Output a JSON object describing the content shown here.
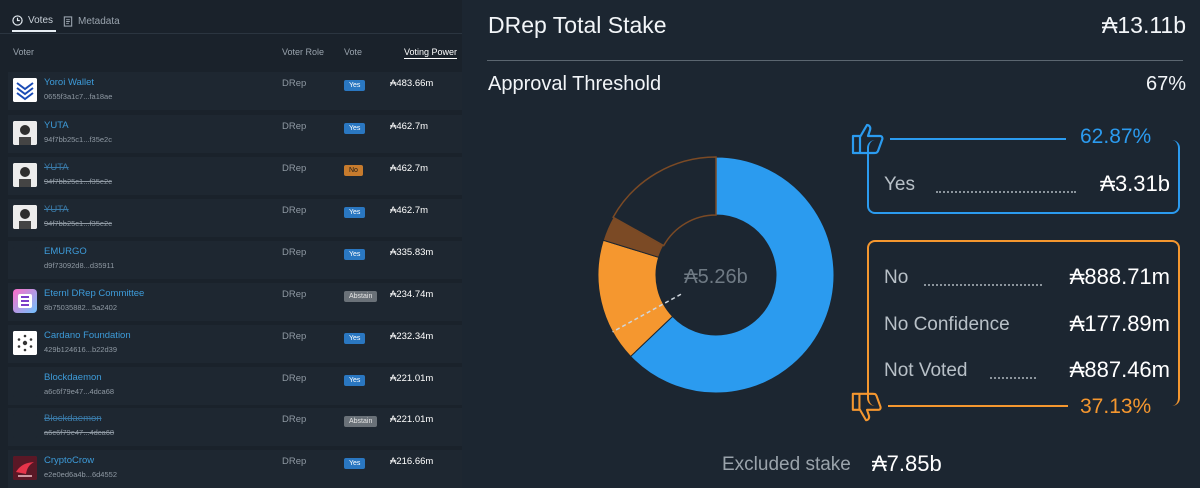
{
  "tabs": [
    {
      "label": "Votes"
    },
    {
      "label": "Metadata"
    }
  ],
  "table": {
    "headers": {
      "voter": "Voter",
      "role": "Voter Role",
      "vote": "Vote",
      "power": "Voting Power"
    },
    "rows": [
      {
        "name": "Yoroi Wallet",
        "hash": "0655f3a1c7...fa18ae",
        "role": "DRep",
        "vote": "Yes",
        "power": "₳483.66m"
      },
      {
        "name": "YUTA",
        "hash": "94f7bb25c1...f35e2c",
        "role": "DRep",
        "vote": "Yes",
        "power": "₳462.7m"
      },
      {
        "name": "YUTA",
        "hash": "94f7bb25c1...f35e2c",
        "role": "DRep",
        "vote": "No",
        "power": "₳462.7m"
      },
      {
        "name": "YUTA",
        "hash": "94f7bb25c1...f35e2c",
        "role": "DRep",
        "vote": "Yes",
        "power": "₳462.7m"
      },
      {
        "name": "EMURGO",
        "hash": "d9f73092d8...d35911",
        "role": "DRep",
        "vote": "Yes",
        "power": "₳335.83m"
      },
      {
        "name": "Eternl DRep Committee",
        "hash": "8b75035882...5a2402",
        "role": "DRep",
        "vote": "Abstain",
        "power": "₳234.74m"
      },
      {
        "name": "Cardano Foundation",
        "hash": "429b124616...b22d39",
        "role": "DRep",
        "vote": "Yes",
        "power": "₳232.34m"
      },
      {
        "name": "Blockdaemon",
        "hash": "a6c6f79e47...4dca68",
        "role": "DRep",
        "vote": "Yes",
        "power": "₳221.01m"
      },
      {
        "name": "Blockdaemon",
        "hash": "a6c6f79e47...4dca68",
        "role": "DRep",
        "vote": "Abstain",
        "power": "₳221.01m"
      },
      {
        "name": "CryptoCrow",
        "hash": "e2e0ed6a4b...6d4552",
        "role": "DRep",
        "vote": "Yes",
        "power": "₳216.66m"
      }
    ]
  },
  "summary": {
    "total_label": "DRep Total Stake",
    "total_value": "₳13.11b",
    "threshold_label": "Approval Threshold",
    "threshold_value": "67%",
    "center_value": "₳5.26b",
    "yes_pct": "62.87%",
    "yes_label": "Yes",
    "yes_value": "₳3.31b",
    "no_label": "No",
    "no_value": "₳888.71m",
    "noconf_label": "No Confidence",
    "noconf_value": "₳177.89m",
    "notvoted_label": "Not Voted",
    "notvoted_value": "₳887.46m",
    "no_pct": "37.13%",
    "excluded_label": "Excluded stake",
    "excluded_value": "₳7.85b"
  },
  "colors": {
    "yes": "#2b9bef",
    "no": "#f5972f"
  },
  "chart_data": {
    "type": "pie",
    "title": "",
    "series": [
      {
        "name": "Yes",
        "value": 3310,
        "color": "#2b9bef"
      },
      {
        "name": "No",
        "value": 888.71,
        "color": "#f5972f"
      },
      {
        "name": "No Confidence",
        "value": 177.89,
        "color": "#7b4a25"
      },
      {
        "name": "Not Voted",
        "value": 887.46,
        "color": "#1c2631"
      }
    ],
    "threshold": 0.67,
    "center_label": "₳5.26b"
  }
}
